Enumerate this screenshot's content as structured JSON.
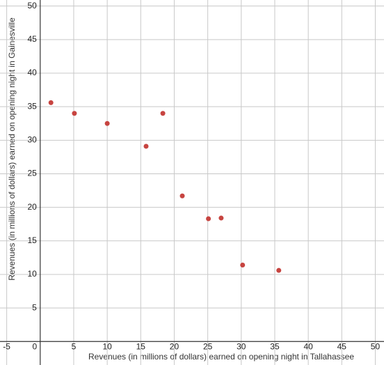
{
  "chart_data": {
    "type": "scatter",
    "x_label": "Revenues (in millions of dollars) earned on opening night in Tallahassee",
    "y_label": "Revenues (in millions of dollars) earned on opening night in Gainesville",
    "series": [
      {
        "color": "#c74440",
        "x": [
          1.6,
          5.1,
          10.0,
          15.8,
          18.3,
          21.2,
          25.1,
          27.0,
          30.2,
          35.6
        ],
        "values": [
          35.6,
          34.0,
          32.5,
          29.1,
          34.0,
          21.7,
          18.3,
          18.4,
          11.4,
          10.6
        ]
      }
    ],
    "xlim": [
      -6,
      51.3
    ],
    "ylim": [
      -3.5,
      50.9
    ],
    "xticks": [
      -5,
      0,
      5,
      10,
      15,
      20,
      25,
      30,
      35,
      40,
      45,
      50
    ],
    "yticks": [
      5,
      10,
      15,
      20,
      25,
      30,
      35,
      40,
      45,
      50
    ],
    "grid": true
  }
}
